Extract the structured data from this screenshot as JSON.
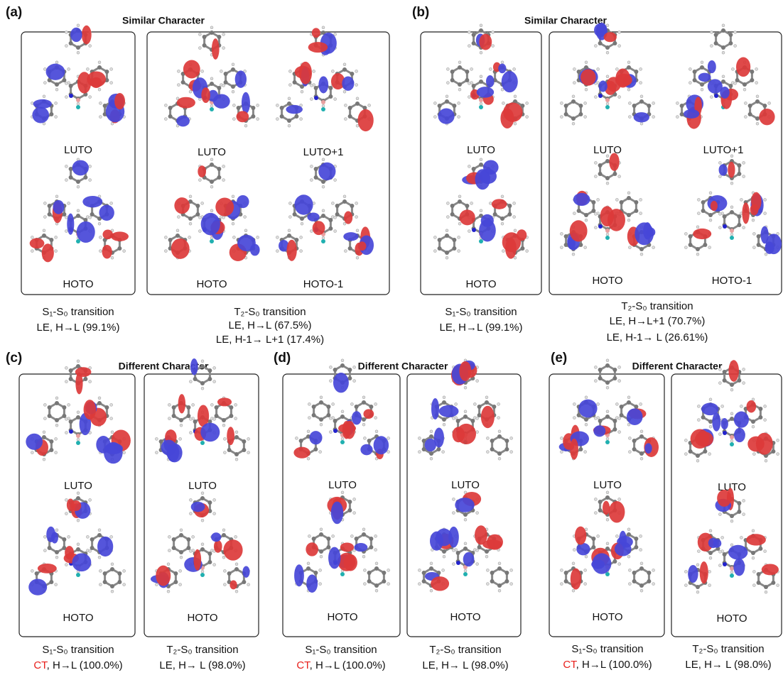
{
  "panels": [
    {
      "label": "(a)",
      "title": "Similar Character",
      "boxes": [
        {
          "orbitals": [
            "LUTO",
            "HOTO"
          ],
          "caption": [
            "S₁-S₀ transition",
            "LE, H→L (99.1%)"
          ]
        },
        {
          "orbitals": [
            "LUTO",
            "LUTO+1",
            "HOTO",
            "HOTO-1"
          ],
          "caption": [
            "T₂-S₀ transition",
            "LE, H→L (67.5%)",
            "LE, H-1→ L+1 (17.4%)"
          ]
        }
      ]
    },
    {
      "label": "(b)",
      "title": "Similar Character",
      "boxes": [
        {
          "orbitals": [
            "LUTO",
            "HOTO"
          ],
          "caption": [
            "S₁-S₀ transition",
            "LE, H→L (99.1%)"
          ]
        },
        {
          "orbitals": [
            "LUTO",
            "LUTO+1",
            "HOTO",
            "HOTO-1"
          ],
          "caption": [
            "T₂-S₀ transition",
            "LE, H→L+1 (70.7%)",
            "LE, H-1→ L (26.61%)"
          ]
        }
      ]
    },
    {
      "label": "(c)",
      "title": "Different Character",
      "boxes": [
        {
          "orbitals": [
            "LUTO",
            "HOTO"
          ],
          "caption": [
            "S₁-S₀ transition",
            {
              "highlight": "CT",
              "text": ", H→L (100.0%)"
            }
          ]
        },
        {
          "orbitals": [
            "LUTO",
            "HOTO"
          ],
          "caption": [
            "T₂-S₀ transition",
            "LE, H→ L (98.0%)"
          ]
        }
      ]
    },
    {
      "label": "(d)",
      "title": "Different Character",
      "boxes": [
        {
          "orbitals": [
            "LUTO",
            "HOTO"
          ],
          "caption": [
            "S₁-S₀ transition",
            {
              "highlight": "CT",
              "text": ", H→L (100.0%)"
            }
          ]
        },
        {
          "orbitals": [
            "LUTO",
            "HOTO"
          ],
          "caption": [
            "T₂-S₀ transition",
            "LE, H→ L (98.0%)"
          ]
        }
      ]
    },
    {
      "label": "(e)",
      "title": "Different Character",
      "boxes": [
        {
          "orbitals": [
            "LUTO",
            "HOTO"
          ],
          "caption": [
            "S₁-S₀ transition",
            {
              "highlight": "CT",
              "text": ", H→L (100.0%)"
            }
          ]
        },
        {
          "orbitals": [
            "LUTO",
            "HOTO"
          ],
          "caption": [
            "T₂-S₀ transition",
            "LE, H→ L (98.0%)"
          ]
        }
      ]
    }
  ]
}
